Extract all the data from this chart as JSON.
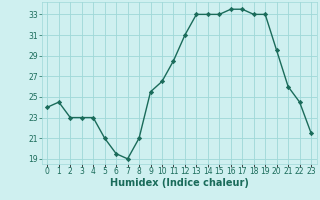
{
  "x": [
    0,
    1,
    2,
    3,
    4,
    5,
    6,
    7,
    8,
    9,
    10,
    11,
    12,
    13,
    14,
    15,
    16,
    17,
    18,
    19,
    20,
    21,
    22,
    23
  ],
  "y": [
    24.0,
    24.5,
    23.0,
    23.0,
    23.0,
    21.0,
    19.5,
    19.0,
    21.0,
    25.5,
    26.5,
    28.5,
    31.0,
    33.0,
    33.0,
    33.0,
    33.5,
    33.5,
    33.0,
    33.0,
    29.5,
    26.0,
    24.5,
    21.5
  ],
  "xlabel": "Humidex (Indice chaleur)",
  "ylim": [
    18.5,
    34.2
  ],
  "xlim": [
    -0.5,
    23.5
  ],
  "yticks": [
    19,
    21,
    23,
    25,
    27,
    29,
    31,
    33
  ],
  "xtick_labels": [
    "0",
    "1",
    "2",
    "3",
    "4",
    "5",
    "6",
    "7",
    "8",
    "9",
    "10",
    "11",
    "12",
    "13",
    "14",
    "15",
    "16",
    "17",
    "18",
    "19",
    "20",
    "21",
    "22",
    "23"
  ],
  "line_color": "#1a6b5a",
  "marker": "D",
  "marker_size": 2.2,
  "bg_color": "#cff0f0",
  "grid_color": "#9fd8d8",
  "font_color": "#1a6b5a",
  "tick_fontsize": 5.5,
  "xlabel_fontsize": 7.0,
  "linewidth": 1.0
}
